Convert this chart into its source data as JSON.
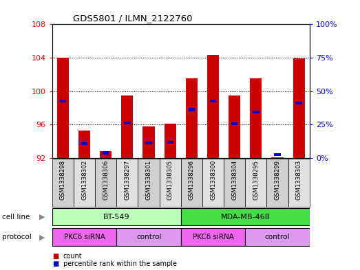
{
  "title": "GDS5801 / ILMN_2122760",
  "samples": [
    "GSM1338298",
    "GSM1338302",
    "GSM1338306",
    "GSM1338297",
    "GSM1338301",
    "GSM1338305",
    "GSM1338296",
    "GSM1338300",
    "GSM1338304",
    "GSM1338295",
    "GSM1338299",
    "GSM1338303"
  ],
  "red_values": [
    104.0,
    95.3,
    92.8,
    99.5,
    95.8,
    96.1,
    101.5,
    104.3,
    99.5,
    101.5,
    92.1,
    103.9
  ],
  "blue_values": [
    98.8,
    93.7,
    92.6,
    96.2,
    93.8,
    93.9,
    97.8,
    98.8,
    96.1,
    97.5,
    92.4,
    98.6
  ],
  "ylim": [
    92,
    108
  ],
  "yticks": [
    92,
    96,
    100,
    104,
    108
  ],
  "y2ticks": [
    0,
    25,
    50,
    75,
    100
  ],
  "y2labels": [
    "0%",
    "25%",
    "50%",
    "75%",
    "100%"
  ],
  "red_color": "#cc0000",
  "blue_color": "#0000cc",
  "bar_width": 0.55,
  "cell_line_labels": [
    "BT-549",
    "MDA-MB-468"
  ],
  "cell_line_ranges": [
    [
      0,
      6
    ],
    [
      6,
      12
    ]
  ],
  "cell_line_colors": [
    "#bbffbb",
    "#44dd44"
  ],
  "protocol_labels": [
    "PKCδ siRNA",
    "control",
    "PKCδ siRNA",
    "control"
  ],
  "protocol_ranges": [
    [
      0,
      3
    ],
    [
      3,
      6
    ],
    [
      6,
      9
    ],
    [
      9,
      12
    ]
  ],
  "protocol_colors": [
    "#ee66ee",
    "#dd99ee",
    "#ee66ee",
    "#dd99ee"
  ],
  "legend_count": "count",
  "legend_percentile": "percentile rank within the sample"
}
